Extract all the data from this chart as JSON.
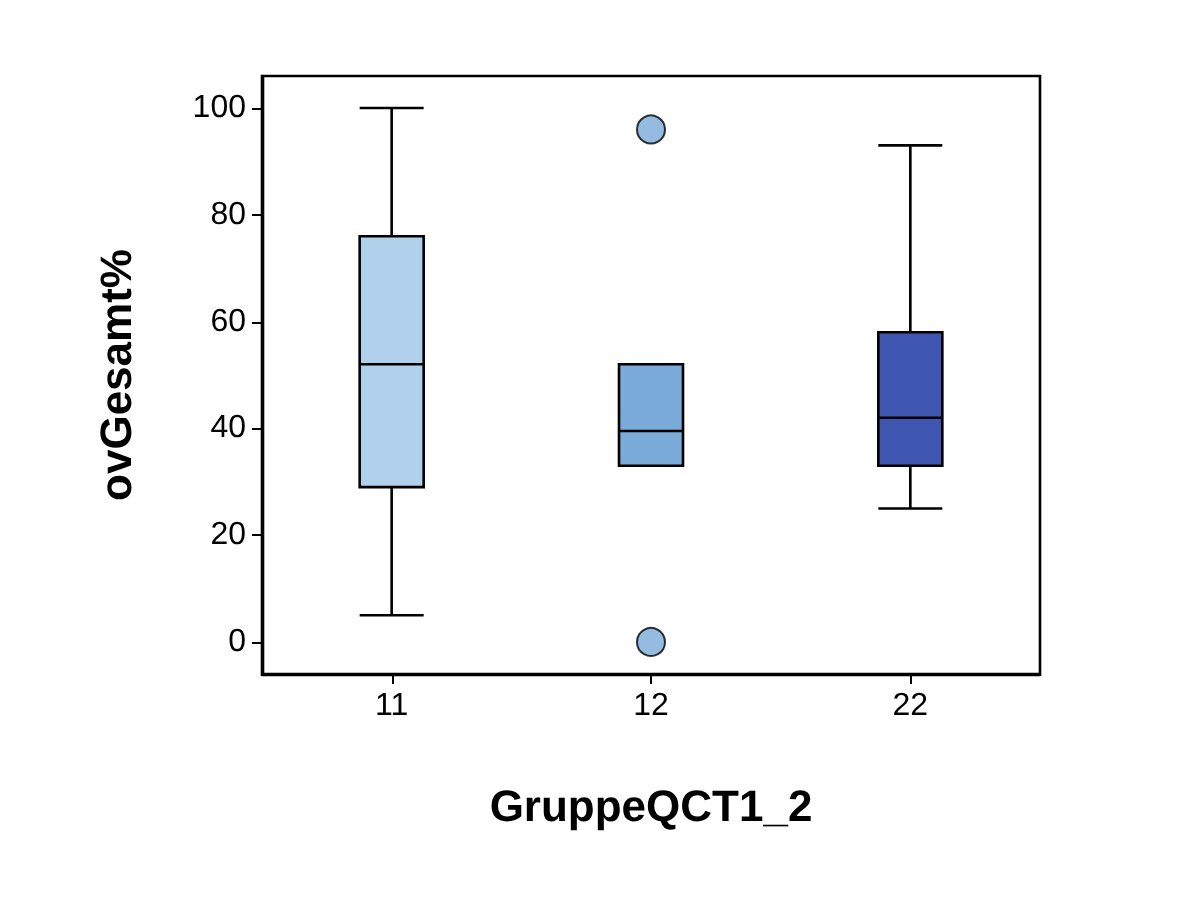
{
  "chart_data": {
    "type": "box",
    "xlabel": "GruppeQCT1_2",
    "ylabel": "ovGesamt%",
    "categories": [
      "11",
      "12",
      "22"
    ],
    "boxes": [
      {
        "low": 5,
        "q1": 29,
        "median": 52,
        "q3": 76,
        "high": 100
      },
      {
        "low": 33,
        "q1": 33,
        "median": 39.5,
        "q3": 52,
        "high": 52,
        "outliers": [
          96,
          0
        ]
      },
      {
        "low": 25,
        "q1": 33,
        "median": 42,
        "q3": 58,
        "high": 93
      }
    ],
    "colors": [
      "#b0d0ec",
      "#7aaad8",
      "#3f56b0"
    ],
    "ylim": [
      -6,
      106
    ],
    "yticks": [
      0,
      20,
      40,
      60,
      80,
      100
    ],
    "grid": false
  }
}
